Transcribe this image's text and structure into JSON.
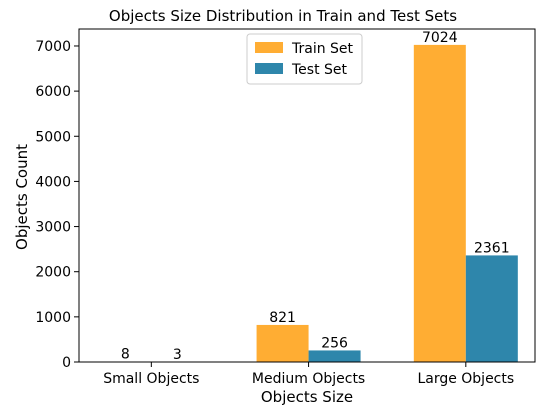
{
  "chart_data": {
    "type": "bar",
    "title": "Objects Size Distribution in Train and Test Sets",
    "xlabel": "Objects Size",
    "ylabel": "Objects Count",
    "categories": [
      "Small Objects",
      "Medium Objects",
      "Large Objects"
    ],
    "series": [
      {
        "name": "Train Set",
        "values": [
          8,
          821,
          7024
        ],
        "color": "#ffad33"
      },
      {
        "name": "Test Set",
        "values": [
          3,
          256,
          2361
        ],
        "color": "#2e86ab"
      }
    ],
    "data_labels": [
      [
        "8",
        "821",
        "7024"
      ],
      [
        "3",
        "256",
        "2361"
      ]
    ],
    "ylim": [
      0,
      7376
    ],
    "yticks": [
      0,
      1000,
      2000,
      3000,
      4000,
      5000,
      6000,
      7000
    ],
    "ytick_labels": [
      "0",
      "1000",
      "2000",
      "3000",
      "4000",
      "5000",
      "6000",
      "7000"
    ],
    "grid": false,
    "legend_position": "top-center"
  }
}
